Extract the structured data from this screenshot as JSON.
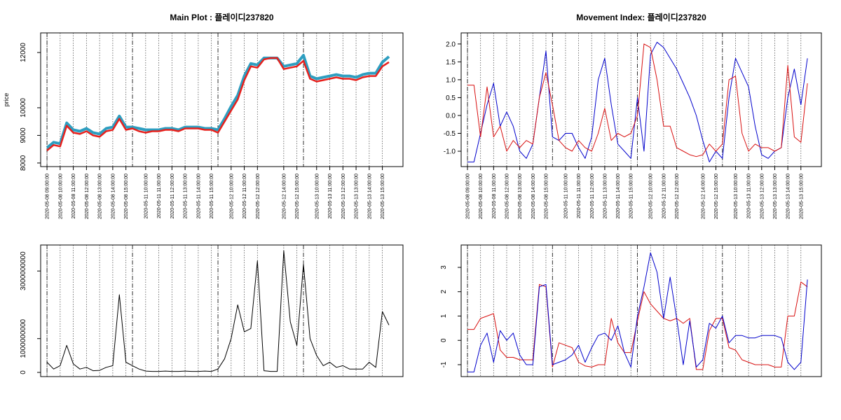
{
  "chart_data": [
    {
      "type": "line",
      "title": "Main Plot : 플레이디237820",
      "ylabel": "price",
      "x": [
        0,
        30,
        60,
        90,
        120,
        150,
        180,
        210,
        240,
        270,
        300,
        330,
        360,
        390,
        420,
        450,
        480,
        510,
        540,
        570,
        600,
        630,
        660,
        690,
        720,
        750,
        780,
        810,
        840,
        870,
        900,
        930,
        960,
        990,
        1020,
        1050,
        1080,
        1110,
        1140,
        1170,
        1200,
        1230,
        1260,
        1290,
        1320,
        1350,
        1380,
        1410,
        1440,
        1470,
        1500,
        1530,
        1560
      ],
      "series": [
        {
          "color": "#2e9ec0",
          "values": [
            8550,
            8750,
            8700,
            9450,
            9200,
            9150,
            9250,
            9100,
            9050,
            9250,
            9300,
            9700,
            9300,
            9300,
            9250,
            9200,
            9200,
            9200,
            9250,
            9250,
            9200,
            9300,
            9300,
            9300,
            9250,
            9250,
            9200,
            9600,
            10050,
            10450,
            11150,
            11600,
            11550,
            11800,
            11800,
            11800,
            11500,
            11550,
            11600,
            11900,
            11150,
            11050,
            11100,
            11150,
            11200,
            11150,
            11150,
            11100,
            11200,
            11250,
            11250,
            11650,
            11850
          ]
        },
        {
          "color": "#e8201c",
          "values": [
            8450,
            8650,
            8600,
            9350,
            9100,
            9050,
            9150,
            9000,
            8950,
            9150,
            9200,
            9600,
            9200,
            9250,
            9150,
            9100,
            9150,
            9150,
            9200,
            9200,
            9150,
            9250,
            9250,
            9250,
            9200,
            9200,
            9100,
            9500,
            9900,
            10300,
            11000,
            11500,
            11450,
            11750,
            11800,
            11800,
            11400,
            11450,
            11500,
            11700,
            11050,
            10950,
            11000,
            11050,
            11100,
            11050,
            11050,
            11000,
            11100,
            11150,
            11150,
            11500,
            11650
          ]
        }
      ],
      "xlim": [
        -29,
        1624
      ],
      "ylim": [
        7870,
        12710
      ],
      "yticks": [
        8000,
        9000,
        10000,
        12000
      ],
      "xticks": [
        {
          "value": 0,
          "label": "2020-05-08 09:00:00"
        },
        {
          "value": 60,
          "label": "2020-05-08 10:00:00"
        },
        {
          "value": 120,
          "label": "2020-05-08 11:00:00"
        },
        {
          "value": 180,
          "label": "2020-05-08 12:00:00"
        },
        {
          "value": 240,
          "label": "2020-05-08 13:00:00"
        },
        {
          "value": 300,
          "label": "2020-05-08 14:00:00"
        },
        {
          "value": 360,
          "label": "2020-05-08 15:00:00"
        },
        {
          "value": 450,
          "label": "2020-05-11 10:00:00"
        },
        {
          "value": 510,
          "label": "2020-05-11 11:00:00"
        },
        {
          "value": 570,
          "label": "2020-05-11 12:00:00"
        },
        {
          "value": 630,
          "label": "2020-05-11 13:00:00"
        },
        {
          "value": 690,
          "label": "2020-05-11 14:00:00"
        },
        {
          "value": 750,
          "label": "2020-05-11 15:00:00"
        },
        {
          "value": 840,
          "label": "2020-05-12 10:00:00"
        },
        {
          "value": 900,
          "label": "2020-05-12 11:00:00"
        },
        {
          "value": 960,
          "label": "2020-05-12 12:00:00"
        },
        {
          "value": 1080,
          "label": "2020-05-12 14:00:00"
        },
        {
          "value": 1140,
          "label": "2020-05-12 15:00:00"
        },
        {
          "value": 1230,
          "label": "2020-05-13 10:00:00"
        },
        {
          "value": 1290,
          "label": "2020-05-13 11:00:00"
        },
        {
          "value": 1350,
          "label": "2020-05-13 12:00:00"
        },
        {
          "value": 1410,
          "label": "2020-05-13 13:00:00"
        },
        {
          "value": 1470,
          "label": "2020-05-13 14:00:00"
        },
        {
          "value": 1530,
          "label": "2020-05-13 15:00:00"
        }
      ],
      "day_lines": [
        0,
        390,
        780,
        1170
      ]
    },
    {
      "type": "line",
      "title": "Movement Index: 플레이디237820",
      "x": [
        0,
        30,
        60,
        90,
        120,
        150,
        180,
        210,
        240,
        270,
        300,
        330,
        360,
        390,
        420,
        450,
        480,
        510,
        540,
        570,
        600,
        630,
        660,
        690,
        720,
        750,
        780,
        810,
        840,
        870,
        900,
        930,
        960,
        990,
        1020,
        1050,
        1080,
        1110,
        1140,
        1170,
        1200,
        1230,
        1260,
        1290,
        1320,
        1350,
        1380,
        1410,
        1440,
        1470,
        1500,
        1530,
        1560
      ],
      "series": [
        {
          "color": "#0000cc",
          "values": [
            -1.3,
            -1.3,
            -0.5,
            0.3,
            0.9,
            -0.3,
            0.1,
            -0.3,
            -1.0,
            -1.2,
            -0.8,
            0.5,
            1.8,
            -0.6,
            -0.7,
            -0.5,
            -0.5,
            -0.9,
            -1.2,
            -0.6,
            1.0,
            1.6,
            0.3,
            -0.8,
            -1.0,
            -1.2,
            0.5,
            -1.0,
            1.7,
            2.05,
            1.9,
            1.6,
            1.3,
            0.9,
            0.5,
            0.0,
            -0.7,
            -1.3,
            -1.0,
            -1.2,
            0.5,
            1.6,
            1.2,
            0.8,
            -0.3,
            -1.1,
            -1.2,
            -1.0,
            -0.9,
            0.5,
            1.3,
            0.3,
            1.6
          ]
        },
        {
          "color": "#d81010",
          "values": [
            0.85,
            0.85,
            -0.6,
            0.8,
            -0.6,
            -0.3,
            -1.0,
            -0.7,
            -0.9,
            -0.7,
            -0.8,
            0.5,
            1.2,
            0.3,
            -0.7,
            -0.9,
            -1.0,
            -0.7,
            -0.9,
            -1.0,
            -0.5,
            0.2,
            -0.7,
            -0.5,
            -0.6,
            -0.5,
            0.0,
            2.0,
            1.9,
            1.0,
            -0.3,
            -0.3,
            -0.9,
            -1.0,
            -1.1,
            -1.15,
            -1.1,
            -0.8,
            -1.0,
            -0.8,
            1.0,
            1.1,
            -0.5,
            -1.0,
            -0.8,
            -0.9,
            -0.9,
            -1.0,
            -0.9,
            1.4,
            -0.6,
            -0.75,
            0.9
          ]
        }
      ],
      "xlim": [
        -29,
        1624
      ],
      "ylim": [
        -1.43,
        2.31
      ],
      "yticks": [
        {
          "value": -1,
          "label": "-1.0"
        },
        -0.5,
        {
          "value": 0,
          "label": "0.0"
        },
        0.5,
        {
          "value": 1,
          "label": "1.0"
        },
        1.5,
        {
          "value": 2,
          "label": "2.0"
        }
      ],
      "xticks": [
        {
          "value": 0,
          "label": "2020-05-08 09:00:00"
        },
        {
          "value": 60,
          "label": "2020-05-08 10:00:00"
        },
        {
          "value": 120,
          "label": "2020-05-08 11:00:00"
        },
        {
          "value": 180,
          "label": "2020-05-08 12:00:00"
        },
        {
          "value": 240,
          "label": "2020-05-08 13:00:00"
        },
        {
          "value": 300,
          "label": "2020-05-08 14:00:00"
        },
        {
          "value": 360,
          "label": "2020-05-08 15:00:00"
        },
        {
          "value": 450,
          "label": "2020-05-11 10:00:00"
        },
        {
          "value": 510,
          "label": "2020-05-11 11:00:00"
        },
        {
          "value": 570,
          "label": "2020-05-11 12:00:00"
        },
        {
          "value": 630,
          "label": "2020-05-11 13:00:00"
        },
        {
          "value": 690,
          "label": "2020-05-11 14:00:00"
        },
        {
          "value": 750,
          "label": "2020-05-11 15:00:00"
        },
        {
          "value": 840,
          "label": "2020-05-12 10:00:00"
        },
        {
          "value": 900,
          "label": "2020-05-12 11:00:00"
        },
        {
          "value": 960,
          "label": "2020-05-12 12:00:00"
        },
        {
          "value": 1080,
          "label": "2020-05-12 14:00:00"
        },
        {
          "value": 1140,
          "label": "2020-05-12 15:00:00"
        },
        {
          "value": 1230,
          "label": "2020-05-13 10:00:00"
        },
        {
          "value": 1290,
          "label": "2020-05-13 11:00:00"
        },
        {
          "value": 1350,
          "label": "2020-05-13 12:00:00"
        },
        {
          "value": 1410,
          "label": "2020-05-13 13:00:00"
        },
        {
          "value": 1470,
          "label": "2020-05-13 14:00:00"
        },
        {
          "value": 1530,
          "label": "2020-05-13 15:00:00"
        }
      ],
      "day_lines": [
        0,
        390,
        780,
        1170
      ]
    },
    {
      "type": "line",
      "x": [
        0,
        30,
        60,
        90,
        120,
        150,
        180,
        210,
        240,
        270,
        300,
        330,
        360,
        390,
        420,
        450,
        480,
        510,
        540,
        570,
        600,
        630,
        660,
        690,
        720,
        750,
        780,
        810,
        840,
        870,
        900,
        930,
        960,
        990,
        1020,
        1050,
        1080,
        1110,
        1140,
        1170,
        1200,
        1230,
        1260,
        1290,
        1320,
        1350,
        1380,
        1410,
        1440,
        1470,
        1500,
        1530,
        1560
      ],
      "series": [
        {
          "color": "#000000",
          "values": [
            300000000,
            100000000,
            200000000,
            800000000,
            250000000,
            100000000,
            150000000,
            50000000,
            60000000,
            150000000,
            200000000,
            2300000000,
            300000000,
            200000000,
            100000000,
            40000000,
            30000000,
            30000000,
            40000000,
            30000000,
            30000000,
            40000000,
            30000000,
            30000000,
            40000000,
            30000000,
            100000000,
            400000000,
            1000000000,
            2000000000,
            1200000000,
            1300000000,
            3300000000,
            50000000,
            30000000,
            30000000,
            3600000000,
            1500000000,
            800000000,
            3200000000,
            1000000000,
            500000000,
            200000000,
            300000000,
            150000000,
            200000000,
            100000000,
            100000000,
            100000000,
            300000000,
            150000000,
            1800000000,
            1400000000
          ]
        }
      ],
      "xlim": [
        -29,
        1624
      ],
      "ylim": [
        -124000000,
        3770000000
      ],
      "yticks": [
        0,
        1000000000,
        3000000000
      ],
      "xgrid": [
        0,
        60,
        120,
        180,
        240,
        300,
        360,
        450,
        510,
        570,
        630,
        690,
        750,
        840,
        900,
        960,
        1080,
        1140,
        1230,
        1290,
        1350,
        1410,
        1470,
        1530
      ],
      "day_lines": [
        0,
        390,
        780,
        1170
      ]
    },
    {
      "type": "line",
      "x": [
        0,
        30,
        60,
        90,
        120,
        150,
        180,
        210,
        240,
        270,
        300,
        330,
        360,
        390,
        420,
        450,
        480,
        510,
        540,
        570,
        600,
        630,
        660,
        690,
        720,
        750,
        780,
        810,
        840,
        870,
        900,
        930,
        960,
        990,
        1020,
        1050,
        1080,
        1110,
        1140,
        1170,
        1200,
        1230,
        1260,
        1290,
        1320,
        1350,
        1380,
        1410,
        1440,
        1470,
        1500,
        1530,
        1560
      ],
      "series": [
        {
          "color": "#d81010",
          "values": [
            0.45,
            0.45,
            0.9,
            1.0,
            1.1,
            -0.4,
            -0.7,
            -0.7,
            -0.8,
            -0.8,
            -0.8,
            2.3,
            2.2,
            -1.1,
            -0.1,
            -0.2,
            -0.3,
            -0.9,
            -1.05,
            -1.1,
            -1.0,
            -1.0,
            0.9,
            -0.1,
            -0.5,
            -0.5,
            0.8,
            2.0,
            1.5,
            1.2,
            0.9,
            0.8,
            0.9,
            0.7,
            0.9,
            -1.2,
            -1.2,
            0.4,
            0.9,
            0.9,
            -0.3,
            -0.4,
            -0.8,
            -0.9,
            -1.0,
            -1.0,
            -1.0,
            -1.1,
            -1.1,
            1.0,
            1.0,
            2.4,
            2.2
          ]
        },
        {
          "color": "#0000cc",
          "values": [
            -1.3,
            -1.3,
            -0.2,
            0.3,
            -0.9,
            0.4,
            0.0,
            0.3,
            -0.6,
            -1.0,
            -1.0,
            2.2,
            2.3,
            -1.0,
            -0.9,
            -0.8,
            -0.6,
            -0.2,
            -0.9,
            -0.3,
            0.2,
            0.3,
            0.0,
            0.6,
            -0.5,
            -1.1,
            1.0,
            2.2,
            3.6,
            2.8,
            0.9,
            2.6,
            0.9,
            -1.0,
            0.8,
            -1.1,
            -0.8,
            0.7,
            0.5,
            1.0,
            -0.1,
            0.2,
            0.2,
            0.1,
            0.1,
            0.2,
            0.2,
            0.2,
            0.1,
            -0.9,
            -1.2,
            -0.9,
            2.5
          ]
        }
      ],
      "xlim": [
        -29,
        1624
      ],
      "ylim": [
        -1.49,
        3.92
      ],
      "yticks": [
        -1,
        0,
        1,
        2,
        3
      ],
      "xgrid": [
        0,
        60,
        120,
        180,
        240,
        300,
        360,
        450,
        510,
        570,
        630,
        690,
        750,
        840,
        900,
        960,
        1080,
        1140,
        1230,
        1290,
        1350,
        1410,
        1470,
        1530
      ],
      "day_lines": [
        0,
        390,
        780,
        1170
      ]
    }
  ]
}
